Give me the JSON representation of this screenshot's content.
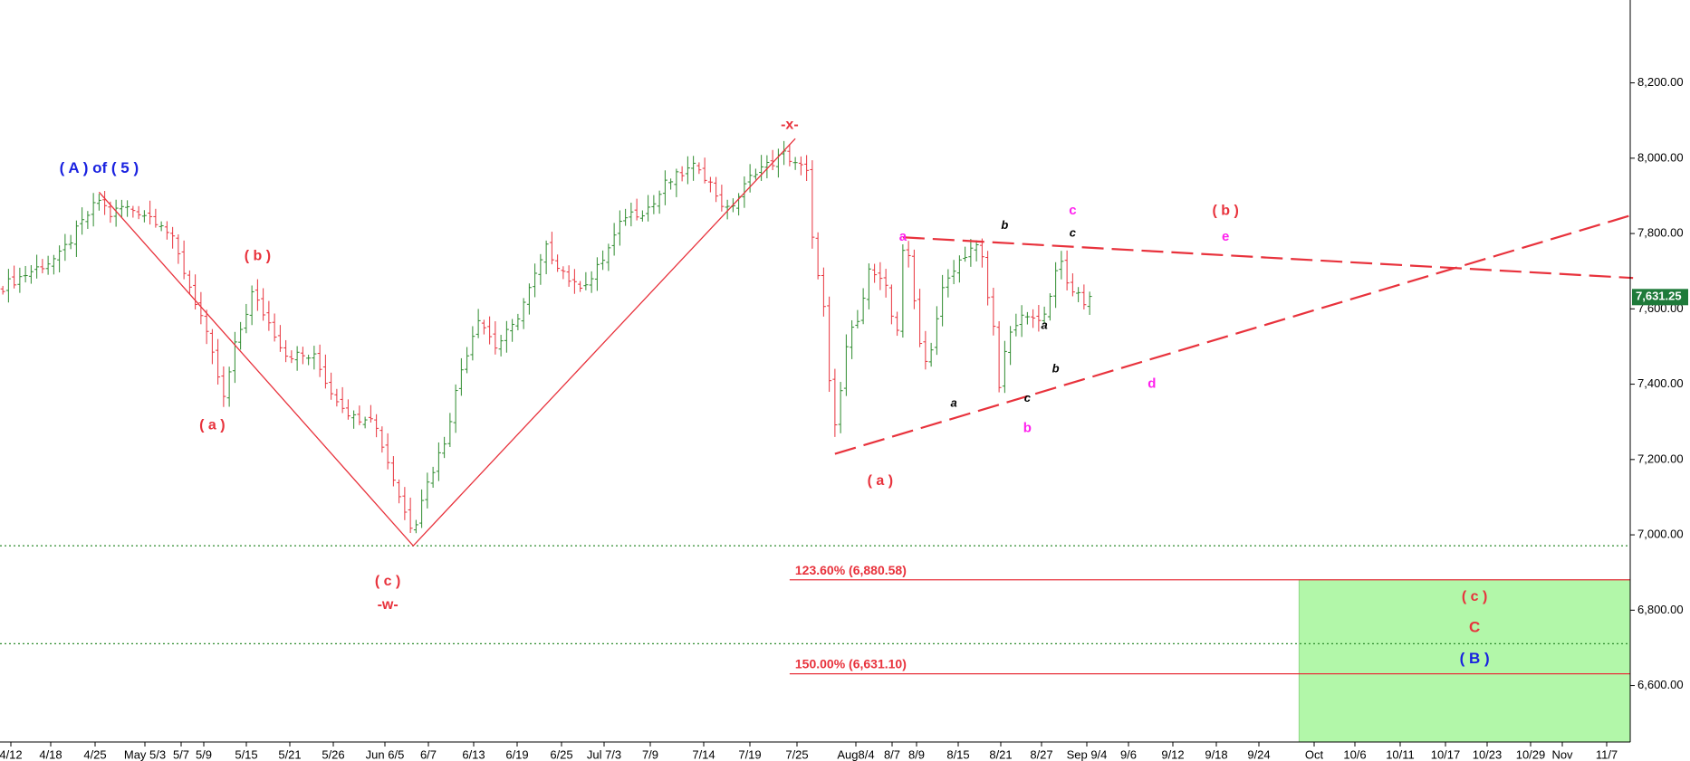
{
  "chart_data": {
    "type": "candlestick",
    "y_axis": {
      "position": "right",
      "ylim": [
        6450,
        8420
      ],
      "ticks": [
        {
          "value": 6600,
          "label": "6,600.00"
        },
        {
          "value": 6800,
          "label": "6,800.00"
        },
        {
          "value": 7000,
          "label": "7,000.00"
        },
        {
          "value": 7200,
          "label": "7,200.00"
        },
        {
          "value": 7400,
          "label": "7,400.00"
        },
        {
          "value": 7600,
          "label": "7,600.00"
        },
        {
          "value": 7800,
          "label": "7,800.00"
        },
        {
          "value": 8000,
          "label": "8,000.00"
        },
        {
          "value": 8200,
          "label": "8,200.00"
        }
      ]
    },
    "x_axis": {
      "labels": [
        "4/12",
        "4/18",
        "4/25",
        "May 5/3",
        "5/7",
        "5/9",
        "5/15",
        "5/21",
        "5/26",
        "Jun 6/5",
        "6/7",
        "6/13",
        "6/19",
        "6/25",
        "Jul 7/3",
        "7/9",
        "7/14",
        "7/19",
        "7/25",
        "Aug8/4",
        "8/7",
        "8/9",
        "8/15",
        "8/21",
        "8/27",
        "Sep 9/4",
        "9/6",
        "9/12",
        "9/18",
        "9/24",
        "Oct",
        "10/6",
        "10/11",
        "10/17",
        "10/23",
        "10/29",
        "Nov",
        "11/7"
      ]
    },
    "price_path": [
      [
        0,
        7660
      ],
      [
        5,
        7700
      ],
      [
        10,
        7740
      ],
      [
        15,
        7850
      ],
      [
        17,
        7890
      ],
      [
        19,
        7850
      ],
      [
        21,
        7870
      ],
      [
        24,
        7860
      ],
      [
        28,
        7830
      ],
      [
        30,
        7780
      ],
      [
        35,
        7580
      ],
      [
        38,
        7420
      ],
      [
        39,
        7360
      ],
      [
        41,
        7500
      ],
      [
        44,
        7640
      ],
      [
        46,
        7590
      ],
      [
        50,
        7480
      ],
      [
        55,
        7470
      ],
      [
        58,
        7380
      ],
      [
        62,
        7310
      ],
      [
        65,
        7320
      ],
      [
        67,
        7240
      ],
      [
        69,
        7150
      ],
      [
        71,
        7060
      ],
      [
        72.5,
        7010
      ],
      [
        74,
        7100
      ],
      [
        78,
        7250
      ],
      [
        81,
        7440
      ],
      [
        84,
        7580
      ],
      [
        87,
        7500
      ],
      [
        90,
        7550
      ],
      [
        93,
        7650
      ],
      [
        96,
        7760
      ],
      [
        99,
        7700
      ],
      [
        101,
        7660
      ],
      [
        104,
        7680
      ],
      [
        107,
        7760
      ],
      [
        110,
        7850
      ],
      [
        113,
        7860
      ],
      [
        115,
        7880
      ],
      [
        117,
        7930
      ],
      [
        120,
        7960
      ],
      [
        123,
        7980
      ],
      [
        125,
        7930
      ],
      [
        127,
        7880
      ],
      [
        128,
        7860
      ],
      [
        130,
        7900
      ],
      [
        133,
        7970
      ],
      [
        135,
        7980
      ],
      [
        137,
        8000
      ],
      [
        138,
        8010
      ],
      [
        140,
        7990
      ],
      [
        142,
        7960
      ],
      [
        143,
        7780
      ],
      [
        144,
        7700
      ],
      [
        145,
        7600
      ],
      [
        146,
        7400
      ],
      [
        147,
        7280
      ],
      [
        148,
        7380
      ],
      [
        149,
        7500
      ],
      [
        151,
        7580
      ],
      [
        153,
        7700
      ],
      [
        154,
        7690
      ],
      [
        156,
        7650
      ],
      [
        157,
        7580
      ],
      [
        158,
        7550
      ],
      [
        159,
        7760
      ],
      [
        160,
        7730
      ],
      [
        161,
        7620
      ],
      [
        162,
        7520
      ],
      [
        163,
        7460
      ],
      [
        164,
        7500
      ],
      [
        166,
        7650
      ],
      [
        168,
        7700
      ],
      [
        170,
        7750
      ],
      [
        172,
        7760
      ],
      [
        173,
        7730
      ],
      [
        174,
        7630
      ],
      [
        175,
        7550
      ],
      [
        176,
        7400
      ],
      [
        177,
        7490
      ],
      [
        179,
        7560
      ],
      [
        181,
        7580
      ],
      [
        183,
        7560
      ],
      [
        184,
        7600
      ],
      [
        186,
        7690
      ],
      [
        187,
        7720
      ],
      [
        188,
        7670
      ],
      [
        190,
        7640
      ],
      [
        191,
        7620
      ],
      [
        192,
        7631.25
      ]
    ],
    "current_price": {
      "value": 7631.25,
      "label": "7,631.25",
      "bar": 192
    },
    "horizontal_lines": [
      {
        "value": 6971,
        "style": "dotted",
        "color": "#2e8b2e"
      },
      {
        "value": 6711,
        "style": "dotted",
        "color": "#2e8b2e"
      }
    ],
    "fib_levels": [
      {
        "value": 6880.58,
        "label": "123.60% (6,880.58)",
        "color": "#e8323c"
      },
      {
        "value": 6631.1,
        "label": "150.00% (6,631.10)",
        "color": "#e8323c"
      }
    ],
    "target_zone": {
      "y_top": 6880.58,
      "y_bottom": 6450,
      "bar_start": 229,
      "color": "#b2f7a9"
    },
    "trend_lines": [
      {
        "points": [
          [
            17,
            7910
          ],
          [
            72.5,
            6971
          ],
          [
            140,
            8052
          ]
        ],
        "style": "solid",
        "color": "#e8323c"
      },
      {
        "points": [
          [
            159,
            7790
          ],
          [
            288,
            7682
          ]
        ],
        "style": "dashed",
        "color": "#e8323c"
      },
      {
        "points": [
          [
            147,
            7215
          ],
          [
            288,
            7850
          ]
        ],
        "style": "dashed",
        "color": "#e8323c"
      }
    ],
    "annotations": [
      {
        "text": "( A ) of ( 5 )",
        "bar": 17,
        "y": 7972,
        "color": "#1a22e0",
        "size": 17,
        "weight": "bold"
      },
      {
        "text": "( b )",
        "bar": 45,
        "y": 7740,
        "color": "#e8323c",
        "size": 16,
        "weight": "bold"
      },
      {
        "text": "( a )",
        "bar": 37,
        "y": 7290,
        "color": "#e8323c",
        "size": 16,
        "weight": "bold"
      },
      {
        "text": "( c )",
        "bar": 68,
        "y": 6876,
        "color": "#e8323c",
        "size": 16,
        "weight": "bold"
      },
      {
        "text": "-w-",
        "bar": 68,
        "y": 6813,
        "color": "#e8323c",
        "size": 16,
        "weight": "bold"
      },
      {
        "text": "-x-",
        "bar": 139,
        "y": 8088,
        "color": "#e8323c",
        "size": 16,
        "weight": "bold"
      },
      {
        "text": "( a )",
        "bar": 155,
        "y": 7142,
        "color": "#e8323c",
        "size": 16,
        "weight": "bold"
      },
      {
        "text": "a",
        "bar": 159,
        "y": 7790,
        "color": "#ff20ee",
        "size": 15,
        "weight": "bold"
      },
      {
        "text": "a",
        "bar": 168,
        "y": 7348,
        "color": "#000000",
        "size": 13,
        "weight": "bold",
        "italic": true
      },
      {
        "text": "b",
        "bar": 177,
        "y": 7821,
        "color": "#000000",
        "size": 13,
        "weight": "bold",
        "italic": true
      },
      {
        "text": "c",
        "bar": 181,
        "y": 7362,
        "color": "#000000",
        "size": 13,
        "weight": "bold",
        "italic": true
      },
      {
        "text": "b",
        "bar": 181,
        "y": 7282,
        "color": "#ff20ee",
        "size": 15,
        "weight": "bold"
      },
      {
        "text": "a",
        "bar": 184,
        "y": 7555,
        "color": "#000000",
        "size": 13,
        "weight": "bold",
        "italic": true
      },
      {
        "text": "b",
        "bar": 186,
        "y": 7440,
        "color": "#000000",
        "size": 13,
        "weight": "bold",
        "italic": true
      },
      {
        "text": "c",
        "bar": 189,
        "y": 7800,
        "color": "#000000",
        "size": 13,
        "weight": "bold",
        "italic": true
      },
      {
        "text": "c",
        "bar": 189,
        "y": 7860,
        "color": "#ff20ee",
        "size": 15,
        "weight": "bold"
      },
      {
        "text": "( b )",
        "bar": 216,
        "y": 7860,
        "color": "#e8323c",
        "size": 16,
        "weight": "bold"
      },
      {
        "text": "e",
        "bar": 216,
        "y": 7790,
        "color": "#ff20ee",
        "size": 15,
        "weight": "bold"
      },
      {
        "text": "d",
        "bar": 203,
        "y": 7400,
        "color": "#ff20ee",
        "size": 15,
        "weight": "bold"
      },
      {
        "text": "( c )",
        "bar": 260,
        "y": 6835,
        "color": "#e8323c",
        "size": 16,
        "weight": "bold"
      },
      {
        "text": "C",
        "bar": 260,
        "y": 6753,
        "color": "#e8323c",
        "size": 17,
        "weight": "bold"
      },
      {
        "text": "( B )",
        "bar": 260,
        "y": 6670,
        "color": "#1a22e0",
        "size": 17,
        "weight": "bold"
      }
    ],
    "colors": {
      "up": "#2e8b2e",
      "down": "#e8323c",
      "axis": "#000000",
      "price_badge": "#1e7a3a"
    }
  }
}
